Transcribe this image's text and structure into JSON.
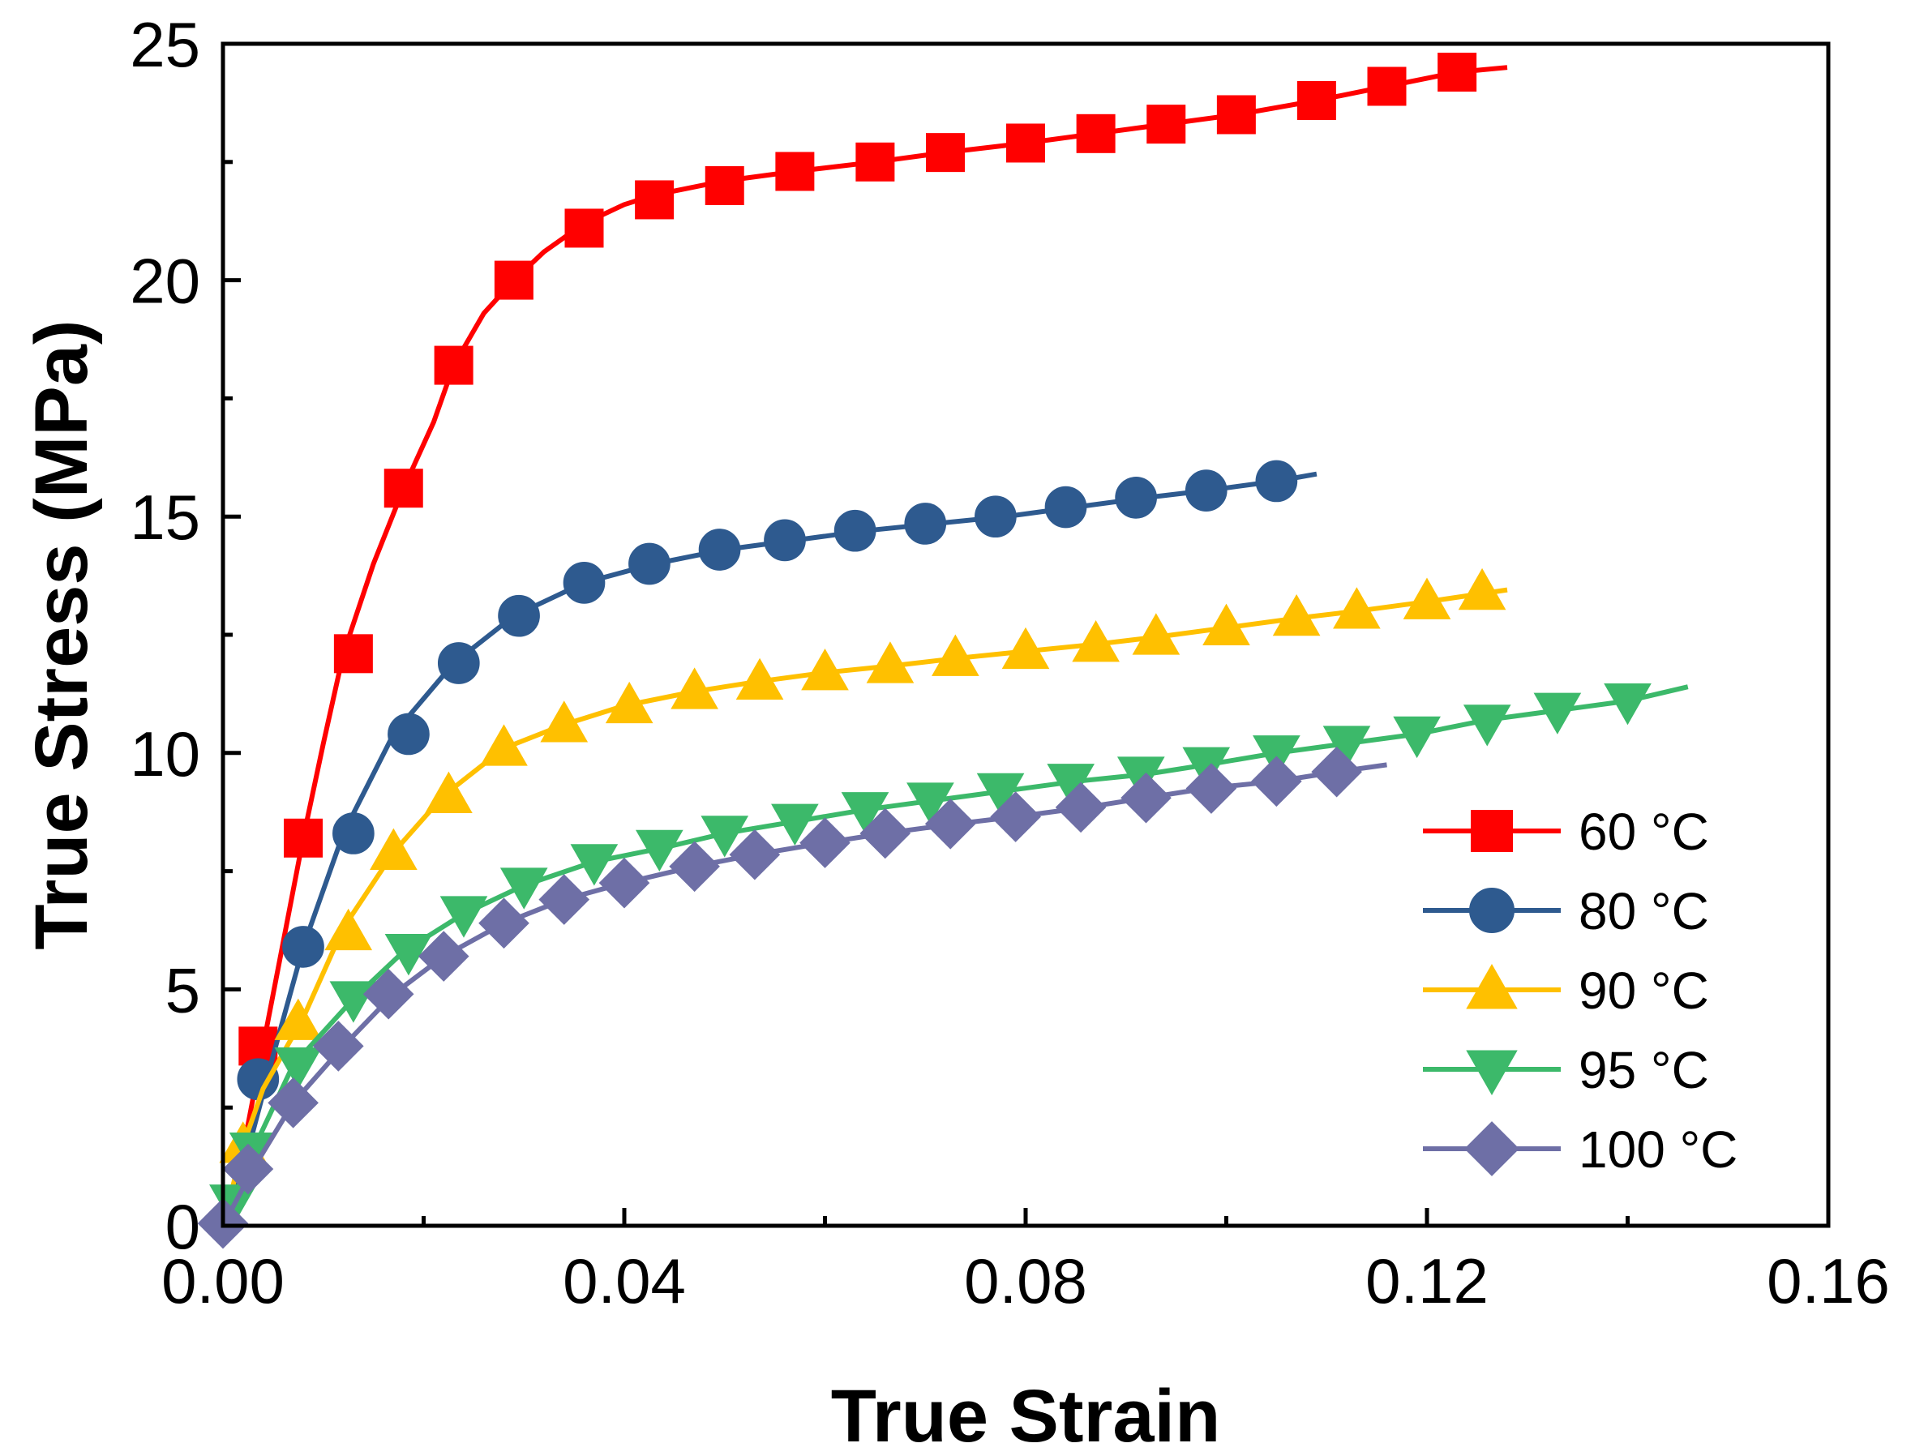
{
  "chart_data": {
    "type": "line",
    "title": "",
    "xlabel": "True Strain",
    "ylabel": "True Stress (MPa)",
    "xlim": [
      0,
      0.16
    ],
    "ylim": [
      0,
      25
    ],
    "xticks": [
      {
        "value": 0,
        "label": "0.00"
      },
      {
        "value": 0.04,
        "label": "0.04"
      },
      {
        "value": 0.08,
        "label": "0.08"
      },
      {
        "value": 0.12,
        "label": "0.12"
      },
      {
        "value": 0.16,
        "label": "0.16"
      }
    ],
    "yticks": [
      {
        "value": 0,
        "label": "0"
      },
      {
        "value": 5,
        "label": "5"
      },
      {
        "value": 10,
        "label": "10"
      },
      {
        "value": 15,
        "label": "15"
      },
      {
        "value": 20,
        "label": "20"
      },
      {
        "value": 25,
        "label": "25"
      }
    ],
    "legend_position": "bottom-right",
    "grid": false,
    "series": [
      {
        "name": "60 °C",
        "color": "#ff0000",
        "marker": "square",
        "line": [
          [
            0,
            0
          ],
          [
            0.002,
            1.6
          ],
          [
            0.004,
            3.8
          ],
          [
            0.006,
            6.0
          ],
          [
            0.008,
            8.2
          ],
          [
            0.01,
            10.2
          ],
          [
            0.012,
            12.1
          ],
          [
            0.015,
            14.0
          ],
          [
            0.018,
            15.6
          ],
          [
            0.021,
            17.0
          ],
          [
            0.023,
            18.2
          ],
          [
            0.026,
            19.3
          ],
          [
            0.029,
            20.0
          ],
          [
            0.032,
            20.6
          ],
          [
            0.036,
            21.2
          ],
          [
            0.04,
            21.6
          ],
          [
            0.043,
            21.8
          ],
          [
            0.05,
            22.1
          ],
          [
            0.057,
            22.3
          ],
          [
            0.065,
            22.5
          ],
          [
            0.072,
            22.7
          ],
          [
            0.08,
            22.9
          ],
          [
            0.087,
            23.1
          ],
          [
            0.094,
            23.3
          ],
          [
            0.101,
            23.5
          ],
          [
            0.109,
            23.8
          ],
          [
            0.116,
            24.1
          ],
          [
            0.123,
            24.4
          ],
          [
            0.128,
            24.5
          ]
        ],
        "markers": [
          [
            0.0035,
            3.8
          ],
          [
            0.008,
            8.2
          ],
          [
            0.013,
            12.1
          ],
          [
            0.018,
            15.6
          ],
          [
            0.023,
            18.2
          ],
          [
            0.029,
            20.0
          ],
          [
            0.036,
            21.1
          ],
          [
            0.043,
            21.7
          ],
          [
            0.05,
            22.0
          ],
          [
            0.057,
            22.3
          ],
          [
            0.065,
            22.5
          ],
          [
            0.072,
            22.7
          ],
          [
            0.08,
            22.9
          ],
          [
            0.087,
            23.1
          ],
          [
            0.094,
            23.3
          ],
          [
            0.101,
            23.5
          ],
          [
            0.109,
            23.8
          ],
          [
            0.116,
            24.1
          ],
          [
            0.123,
            24.4
          ]
        ]
      },
      {
        "name": "80 °C",
        "color": "#2e5a8f",
        "marker": "circle",
        "line": [
          [
            0,
            0
          ],
          [
            0.003,
            2.0
          ],
          [
            0.005,
            3.6
          ],
          [
            0.008,
            5.9
          ],
          [
            0.012,
            8.3
          ],
          [
            0.017,
            10.4
          ],
          [
            0.023,
            11.9
          ],
          [
            0.029,
            12.9
          ],
          [
            0.036,
            13.6
          ],
          [
            0.043,
            14.0
          ],
          [
            0.05,
            14.3
          ],
          [
            0.057,
            14.5
          ],
          [
            0.064,
            14.7
          ],
          [
            0.071,
            14.85
          ],
          [
            0.078,
            15.0
          ],
          [
            0.085,
            15.2
          ],
          [
            0.092,
            15.4
          ],
          [
            0.098,
            15.55
          ],
          [
            0.105,
            15.75
          ],
          [
            0.109,
            15.9
          ]
        ],
        "markers": [
          [
            0.0035,
            3.1
          ],
          [
            0.008,
            5.9
          ],
          [
            0.013,
            8.3
          ],
          [
            0.0185,
            10.4
          ],
          [
            0.0235,
            11.9
          ],
          [
            0.0295,
            12.9
          ],
          [
            0.036,
            13.6
          ],
          [
            0.0425,
            14.0
          ],
          [
            0.0495,
            14.3
          ],
          [
            0.056,
            14.5
          ],
          [
            0.063,
            14.7
          ],
          [
            0.07,
            14.85
          ],
          [
            0.077,
            15.0
          ],
          [
            0.084,
            15.2
          ],
          [
            0.091,
            15.4
          ],
          [
            0.098,
            15.55
          ],
          [
            0.105,
            15.75
          ]
        ]
      },
      {
        "name": "90 °C",
        "color": "#ffc000",
        "marker": "triangle-up",
        "line": [
          [
            0,
            0
          ],
          [
            0.002,
            1.7
          ],
          [
            0.004,
            2.9
          ],
          [
            0.008,
            4.4
          ],
          [
            0.012,
            6.3
          ],
          [
            0.017,
            7.9
          ],
          [
            0.022,
            9.1
          ],
          [
            0.028,
            10.1
          ],
          [
            0.034,
            10.6
          ],
          [
            0.04,
            11.0
          ],
          [
            0.047,
            11.3
          ],
          [
            0.053,
            11.5
          ],
          [
            0.06,
            11.7
          ],
          [
            0.067,
            11.85
          ],
          [
            0.073,
            12.0
          ],
          [
            0.08,
            12.15
          ],
          [
            0.087,
            12.3
          ],
          [
            0.093,
            12.45
          ],
          [
            0.1,
            12.65
          ],
          [
            0.107,
            12.85
          ],
          [
            0.113,
            13.0
          ],
          [
            0.12,
            13.2
          ],
          [
            0.128,
            13.45
          ]
        ],
        "markers": [
          [
            0.002,
            1.7
          ],
          [
            0.0075,
            4.3
          ],
          [
            0.0125,
            6.2
          ],
          [
            0.017,
            7.9
          ],
          [
            0.0225,
            9.1
          ],
          [
            0.028,
            10.1
          ],
          [
            0.034,
            10.6
          ],
          [
            0.0405,
            11.0
          ],
          [
            0.047,
            11.3
          ],
          [
            0.0535,
            11.5
          ],
          [
            0.06,
            11.7
          ],
          [
            0.0665,
            11.85
          ],
          [
            0.073,
            12.0
          ],
          [
            0.08,
            12.15
          ],
          [
            0.087,
            12.3
          ],
          [
            0.093,
            12.45
          ],
          [
            0.1,
            12.65
          ],
          [
            0.107,
            12.85
          ],
          [
            0.113,
            13.0
          ],
          [
            0.12,
            13.2
          ],
          [
            0.1255,
            13.4
          ]
        ]
      },
      {
        "name": "95 °C",
        "color": "#3cb96a",
        "marker": "triangle-down",
        "line": [
          [
            0,
            0
          ],
          [
            0.003,
            1.6
          ],
          [
            0.007,
            3.4
          ],
          [
            0.013,
            4.8
          ],
          [
            0.018,
            5.8
          ],
          [
            0.024,
            6.6
          ],
          [
            0.03,
            7.2
          ],
          [
            0.037,
            7.7
          ],
          [
            0.044,
            8.0
          ],
          [
            0.05,
            8.3
          ],
          [
            0.057,
            8.55
          ],
          [
            0.064,
            8.8
          ],
          [
            0.071,
            9.0
          ],
          [
            0.078,
            9.2
          ],
          [
            0.085,
            9.4
          ],
          [
            0.092,
            9.55
          ],
          [
            0.098,
            9.75
          ],
          [
            0.105,
            10.0
          ],
          [
            0.112,
            10.2
          ],
          [
            0.119,
            10.4
          ],
          [
            0.126,
            10.7
          ],
          [
            0.133,
            10.9
          ],
          [
            0.14,
            11.1
          ],
          [
            0.146,
            11.4
          ]
        ],
        "markers": [
          [
            0.001,
            0.5
          ],
          [
            0.003,
            1.6
          ],
          [
            0.0075,
            3.4
          ],
          [
            0.013,
            4.8
          ],
          [
            0.0185,
            5.8
          ],
          [
            0.024,
            6.6
          ],
          [
            0.03,
            7.2
          ],
          [
            0.037,
            7.7
          ],
          [
            0.0435,
            8.0
          ],
          [
            0.05,
            8.3
          ],
          [
            0.057,
            8.55
          ],
          [
            0.064,
            8.8
          ],
          [
            0.0705,
            9.0
          ],
          [
            0.0775,
            9.2
          ],
          [
            0.0845,
            9.4
          ],
          [
            0.0915,
            9.55
          ],
          [
            0.098,
            9.75
          ],
          [
            0.105,
            10.0
          ],
          [
            0.112,
            10.2
          ],
          [
            0.119,
            10.4
          ],
          [
            0.126,
            10.65
          ],
          [
            0.133,
            10.9
          ],
          [
            0.14,
            11.1
          ]
        ]
      },
      {
        "name": "100 °C",
        "color": "#6e6fa6",
        "marker": "diamond",
        "line": [
          [
            0,
            0
          ],
          [
            0.003,
            1.2
          ],
          [
            0.007,
            2.6
          ],
          [
            0.012,
            3.8
          ],
          [
            0.017,
            4.9
          ],
          [
            0.022,
            5.7
          ],
          [
            0.028,
            6.4
          ],
          [
            0.034,
            6.9
          ],
          [
            0.04,
            7.25
          ],
          [
            0.047,
            7.6
          ],
          [
            0.053,
            7.85
          ],
          [
            0.06,
            8.1
          ],
          [
            0.066,
            8.3
          ],
          [
            0.073,
            8.5
          ],
          [
            0.079,
            8.65
          ],
          [
            0.086,
            8.85
          ],
          [
            0.092,
            9.05
          ],
          [
            0.098,
            9.25
          ],
          [
            0.105,
            9.4
          ],
          [
            0.111,
            9.6
          ],
          [
            0.116,
            9.75
          ]
        ],
        "markers": [
          [
            0,
            0.05
          ],
          [
            0.0025,
            1.2
          ],
          [
            0.007,
            2.6
          ],
          [
            0.0115,
            3.8
          ],
          [
            0.0165,
            4.9
          ],
          [
            0.022,
            5.7
          ],
          [
            0.028,
            6.4
          ],
          [
            0.034,
            6.9
          ],
          [
            0.04,
            7.25
          ],
          [
            0.047,
            7.6
          ],
          [
            0.053,
            7.85
          ],
          [
            0.06,
            8.1
          ],
          [
            0.066,
            8.3
          ],
          [
            0.0725,
            8.5
          ],
          [
            0.079,
            8.65
          ],
          [
            0.0855,
            8.85
          ],
          [
            0.092,
            9.05
          ],
          [
            0.0985,
            9.25
          ],
          [
            0.105,
            9.4
          ],
          [
            0.111,
            9.6
          ]
        ]
      }
    ]
  }
}
